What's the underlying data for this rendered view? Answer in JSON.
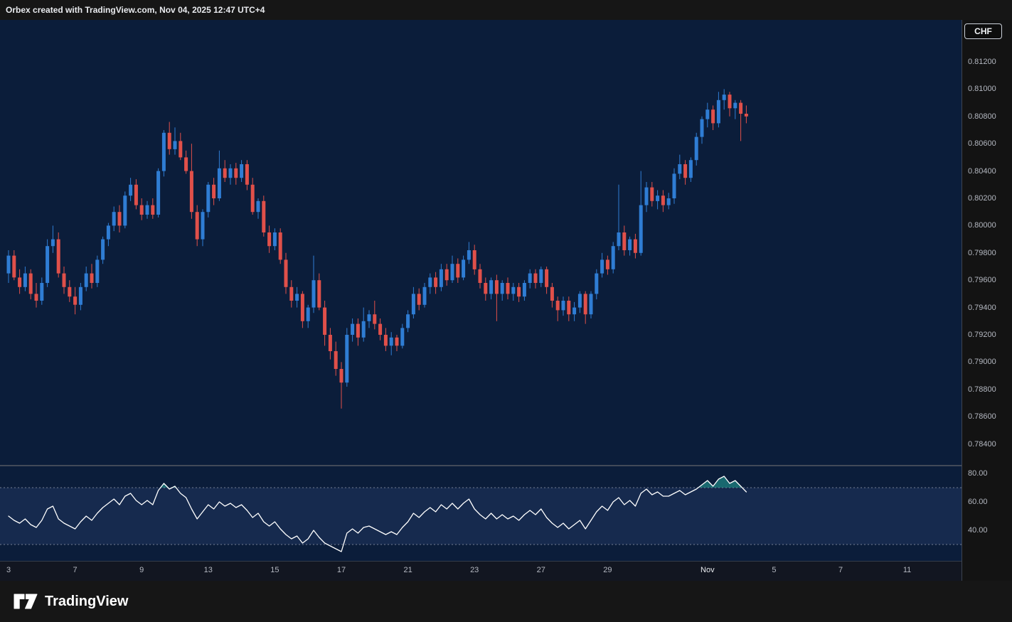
{
  "top_bar": {
    "attribution": "Orbex created with TradingView.com, Nov 04, 2025 12:47 UTC+4"
  },
  "price_scale": {
    "currency": "CHF"
  },
  "footer": {
    "brand": "TradingView"
  },
  "chart_data": {
    "type": "candlestick",
    "quote_currency": "CHF",
    "price_tick_step": 0.002,
    "price_axis_labels": [
      "0.81200",
      "0.81000",
      "0.80800",
      "0.80600",
      "0.80400",
      "0.80200",
      "0.80000",
      "0.79800",
      "0.79600",
      "0.79400",
      "0.79200",
      "0.79000",
      "0.78800",
      "0.78600",
      "0.78400"
    ],
    "time_axis_labels": [
      {
        "text": "3",
        "i": 0
      },
      {
        "text": "7",
        "i": 12
      },
      {
        "text": "9",
        "i": 24
      },
      {
        "text": "13",
        "i": 36
      },
      {
        "text": "15",
        "i": 48
      },
      {
        "text": "17",
        "i": 60
      },
      {
        "text": "21",
        "i": 72
      },
      {
        "text": "23",
        "i": 84
      },
      {
        "text": "27",
        "i": 96
      },
      {
        "text": "29",
        "i": 108
      },
      {
        "text": "Nov",
        "i": 126,
        "emphasis": true
      },
      {
        "text": "5",
        "i": 138
      },
      {
        "text": "7",
        "i": 150
      },
      {
        "text": "11",
        "i": 162
      }
    ],
    "candles": [
      [
        0.7965,
        0.7982,
        0.7958,
        0.7978
      ],
      [
        0.7978,
        0.7982,
        0.796,
        0.7962
      ],
      [
        0.7962,
        0.7968,
        0.795,
        0.7955
      ],
      [
        0.7955,
        0.797,
        0.7952,
        0.7965
      ],
      [
        0.7965,
        0.7968,
        0.7946,
        0.795
      ],
      [
        0.795,
        0.7958,
        0.794,
        0.7945
      ],
      [
        0.7945,
        0.7962,
        0.7942,
        0.7958
      ],
      [
        0.7958,
        0.799,
        0.7955,
        0.7985
      ],
      [
        0.7985,
        0.8,
        0.798,
        0.799
      ],
      [
        0.799,
        0.7995,
        0.7962,
        0.7965
      ],
      [
        0.7965,
        0.797,
        0.795,
        0.7955
      ],
      [
        0.7955,
        0.796,
        0.7944,
        0.7948
      ],
      [
        0.7948,
        0.7955,
        0.7935,
        0.7942
      ],
      [
        0.7942,
        0.7958,
        0.7938,
        0.7955
      ],
      [
        0.7955,
        0.797,
        0.7952,
        0.7965
      ],
      [
        0.7965,
        0.7972,
        0.7954,
        0.7958
      ],
      [
        0.7958,
        0.7978,
        0.7955,
        0.7975
      ],
      [
        0.7975,
        0.7992,
        0.7972,
        0.799
      ],
      [
        0.799,
        0.8002,
        0.7985,
        0.8
      ],
      [
        0.8,
        0.8014,
        0.7996,
        0.801
      ],
      [
        0.801,
        0.8015,
        0.7995,
        0.8
      ],
      [
        0.8,
        0.8025,
        0.7998,
        0.8022
      ],
      [
        0.8022,
        0.8035,
        0.8018,
        0.803
      ],
      [
        0.803,
        0.8034,
        0.8012,
        0.8015
      ],
      [
        0.8015,
        0.802,
        0.8004,
        0.8008
      ],
      [
        0.8008,
        0.8018,
        0.8005,
        0.8015
      ],
      [
        0.8015,
        0.802,
        0.8005,
        0.8008
      ],
      [
        0.8008,
        0.8042,
        0.8006,
        0.804
      ],
      [
        0.804,
        0.807,
        0.8036,
        0.8068
      ],
      [
        0.8068,
        0.8076,
        0.8052,
        0.8056
      ],
      [
        0.8056,
        0.8072,
        0.8052,
        0.8062
      ],
      [
        0.8062,
        0.8068,
        0.8048,
        0.805
      ],
      [
        0.805,
        0.8055,
        0.8038,
        0.804
      ],
      [
        0.804,
        0.806,
        0.8005,
        0.801
      ],
      [
        0.801,
        0.8015,
        0.7985,
        0.799
      ],
      [
        0.799,
        0.8012,
        0.7985,
        0.801
      ],
      [
        0.801,
        0.8032,
        0.8006,
        0.803
      ],
      [
        0.803,
        0.8035,
        0.8015,
        0.802
      ],
      [
        0.802,
        0.8055,
        0.8018,
        0.8042
      ],
      [
        0.8042,
        0.8048,
        0.8032,
        0.8035
      ],
      [
        0.8035,
        0.8045,
        0.803,
        0.8042
      ],
      [
        0.8042,
        0.8046,
        0.803,
        0.8035
      ],
      [
        0.8035,
        0.8048,
        0.8032,
        0.8045
      ],
      [
        0.8045,
        0.8048,
        0.8026,
        0.803
      ],
      [
        0.803,
        0.8035,
        0.8008,
        0.801
      ],
      [
        0.801,
        0.802,
        0.8005,
        0.8018
      ],
      [
        0.8018,
        0.8022,
        0.7992,
        0.7995
      ],
      [
        0.7995,
        0.8,
        0.798,
        0.7985
      ],
      [
        0.7985,
        0.7998,
        0.7982,
        0.7995
      ],
      [
        0.7995,
        0.7998,
        0.7972,
        0.7975
      ],
      [
        0.7975,
        0.798,
        0.795,
        0.7955
      ],
      [
        0.7955,
        0.796,
        0.794,
        0.7945
      ],
      [
        0.7945,
        0.7955,
        0.794,
        0.795
      ],
      [
        0.795,
        0.7952,
        0.7925,
        0.793
      ],
      [
        0.793,
        0.7942,
        0.7925,
        0.794
      ],
      [
        0.794,
        0.7978,
        0.7936,
        0.796
      ],
      [
        0.796,
        0.7965,
        0.7938,
        0.794
      ],
      [
        0.794,
        0.7945,
        0.7912,
        0.792
      ],
      [
        0.792,
        0.7925,
        0.7902,
        0.7908
      ],
      [
        0.7908,
        0.7915,
        0.789,
        0.7895
      ],
      [
        0.7895,
        0.79,
        0.7866,
        0.7885
      ],
      [
        0.7885,
        0.7925,
        0.7882,
        0.792
      ],
      [
        0.792,
        0.7932,
        0.7915,
        0.7928
      ],
      [
        0.7928,
        0.7932,
        0.7912,
        0.7918
      ],
      [
        0.7918,
        0.794,
        0.7915,
        0.793
      ],
      [
        0.793,
        0.7938,
        0.7925,
        0.7935
      ],
      [
        0.7935,
        0.7945,
        0.7924,
        0.7928
      ],
      [
        0.7928,
        0.7932,
        0.7916,
        0.792
      ],
      [
        0.792,
        0.7925,
        0.7908,
        0.7912
      ],
      [
        0.7912,
        0.7922,
        0.7905,
        0.7918
      ],
      [
        0.7918,
        0.792,
        0.7908,
        0.7912
      ],
      [
        0.7912,
        0.7928,
        0.791,
        0.7925
      ],
      [
        0.7925,
        0.7938,
        0.7922,
        0.7935
      ],
      [
        0.7935,
        0.7955,
        0.7932,
        0.795
      ],
      [
        0.795,
        0.7954,
        0.7938,
        0.7942
      ],
      [
        0.7942,
        0.7958,
        0.794,
        0.7955
      ],
      [
        0.7955,
        0.7965,
        0.795,
        0.7962
      ],
      [
        0.7962,
        0.7966,
        0.795,
        0.7955
      ],
      [
        0.7955,
        0.7972,
        0.7952,
        0.7968
      ],
      [
        0.7968,
        0.7972,
        0.7956,
        0.796
      ],
      [
        0.796,
        0.7978,
        0.7958,
        0.7972
      ],
      [
        0.7972,
        0.7976,
        0.7958,
        0.7962
      ],
      [
        0.7962,
        0.7978,
        0.796,
        0.7975
      ],
      [
        0.7975,
        0.7988,
        0.7972,
        0.7982
      ],
      [
        0.7982,
        0.7986,
        0.7964,
        0.7968
      ],
      [
        0.7968,
        0.7972,
        0.7954,
        0.7958
      ],
      [
        0.7958,
        0.7962,
        0.7945,
        0.795
      ],
      [
        0.795,
        0.7962,
        0.7946,
        0.796
      ],
      [
        0.796,
        0.7964,
        0.793,
        0.795
      ],
      [
        0.795,
        0.796,
        0.7945,
        0.7958
      ],
      [
        0.7958,
        0.7962,
        0.7946,
        0.795
      ],
      [
        0.795,
        0.7958,
        0.7945,
        0.7955
      ],
      [
        0.7955,
        0.7958,
        0.7944,
        0.7948
      ],
      [
        0.7948,
        0.796,
        0.7945,
        0.7958
      ],
      [
        0.7958,
        0.7968,
        0.7954,
        0.7965
      ],
      [
        0.7965,
        0.7968,
        0.7954,
        0.7958
      ],
      [
        0.7958,
        0.797,
        0.7955,
        0.7968
      ],
      [
        0.7968,
        0.797,
        0.795,
        0.7955
      ],
      [
        0.7955,
        0.7958,
        0.794,
        0.7945
      ],
      [
        0.7945,
        0.7948,
        0.793,
        0.7938
      ],
      [
        0.7938,
        0.7948,
        0.7934,
        0.7945
      ],
      [
        0.7945,
        0.7948,
        0.793,
        0.7935
      ],
      [
        0.7935,
        0.7944,
        0.793,
        0.794
      ],
      [
        0.794,
        0.7952,
        0.7936,
        0.795
      ],
      [
        0.795,
        0.7952,
        0.7928,
        0.7935
      ],
      [
        0.7935,
        0.7952,
        0.7932,
        0.795
      ],
      [
        0.795,
        0.7968,
        0.7946,
        0.7965
      ],
      [
        0.7965,
        0.798,
        0.7962,
        0.7975
      ],
      [
        0.7975,
        0.7978,
        0.7964,
        0.7968
      ],
      [
        0.7968,
        0.7988,
        0.7965,
        0.7985
      ],
      [
        0.7985,
        0.803,
        0.7982,
        0.7995
      ],
      [
        0.7995,
        0.8,
        0.7978,
        0.7982
      ],
      [
        0.7982,
        0.7992,
        0.7978,
        0.799
      ],
      [
        0.799,
        0.7994,
        0.7976,
        0.798
      ],
      [
        0.798,
        0.804,
        0.7978,
        0.8015
      ],
      [
        0.8015,
        0.8032,
        0.801,
        0.8028
      ],
      [
        0.8028,
        0.8032,
        0.8014,
        0.8018
      ],
      [
        0.8018,
        0.8026,
        0.8012,
        0.8022
      ],
      [
        0.8022,
        0.8026,
        0.801,
        0.8015
      ],
      [
        0.8015,
        0.8024,
        0.8012,
        0.802
      ],
      [
        0.802,
        0.8042,
        0.8016,
        0.8038
      ],
      [
        0.8038,
        0.8052,
        0.8034,
        0.8045
      ],
      [
        0.8045,
        0.8048,
        0.803,
        0.8035
      ],
      [
        0.8035,
        0.805,
        0.8032,
        0.8048
      ],
      [
        0.8048,
        0.8068,
        0.8044,
        0.8065
      ],
      [
        0.8065,
        0.808,
        0.806,
        0.8078
      ],
      [
        0.8078,
        0.809,
        0.8072,
        0.8085
      ],
      [
        0.8085,
        0.8088,
        0.807,
        0.8075
      ],
      [
        0.8075,
        0.8098,
        0.8072,
        0.8092
      ],
      [
        0.8092,
        0.81,
        0.8085,
        0.8096
      ],
      [
        0.8096,
        0.8098,
        0.808,
        0.8086
      ],
      [
        0.8086,
        0.8092,
        0.8078,
        0.809
      ],
      [
        0.809,
        0.8092,
        0.8062,
        0.8082
      ],
      [
        0.8082,
        0.8088,
        0.8075,
        0.808
      ]
    ],
    "rsi_panel": {
      "type": "line",
      "overbought_level": 70,
      "oversold_level": 30,
      "axis_labels": [
        {
          "text": "80.00",
          "value": 80
        },
        {
          "text": "60.00",
          "value": 60
        },
        {
          "text": "40.00",
          "value": 40
        }
      ],
      "values": [
        50,
        47,
        45,
        48,
        44,
        42,
        47,
        55,
        57,
        48,
        45,
        43,
        41,
        46,
        50,
        47,
        52,
        56,
        59,
        62,
        58,
        64,
        66,
        61,
        58,
        61,
        58,
        68,
        73,
        69,
        71,
        66,
        63,
        55,
        48,
        53,
        58,
        55,
        60,
        57,
        59,
        56,
        58,
        54,
        49,
        52,
        46,
        43,
        46,
        41,
        37,
        34,
        36,
        31,
        34,
        40,
        35,
        31,
        29,
        27,
        25,
        38,
        41,
        38,
        42,
        43,
        41,
        39,
        37,
        39,
        37,
        42,
        46,
        52,
        49,
        53,
        56,
        53,
        58,
        55,
        59,
        55,
        59,
        62,
        55,
        51,
        48,
        52,
        48,
        51,
        48,
        50,
        47,
        51,
        54,
        51,
        55,
        49,
        45,
        42,
        45,
        41,
        44,
        47,
        41,
        47,
        53,
        57,
        54,
        60,
        63,
        58,
        61,
        57,
        66,
        69,
        65,
        67,
        64,
        64,
        66,
        68,
        65,
        67,
        69,
        72,
        75,
        71,
        76,
        78,
        73,
        75,
        71,
        67
      ]
    },
    "colors": {
      "up": "#2f7dd4",
      "down": "#e0504a",
      "plot_bg": "#0b1d3a",
      "rsi_line": "#ffffff",
      "rsi_band": "rgba(125,160,255,0.10)",
      "rsi_band_line": "#aab0bb",
      "rsi_overbought": "#26a69a"
    }
  }
}
